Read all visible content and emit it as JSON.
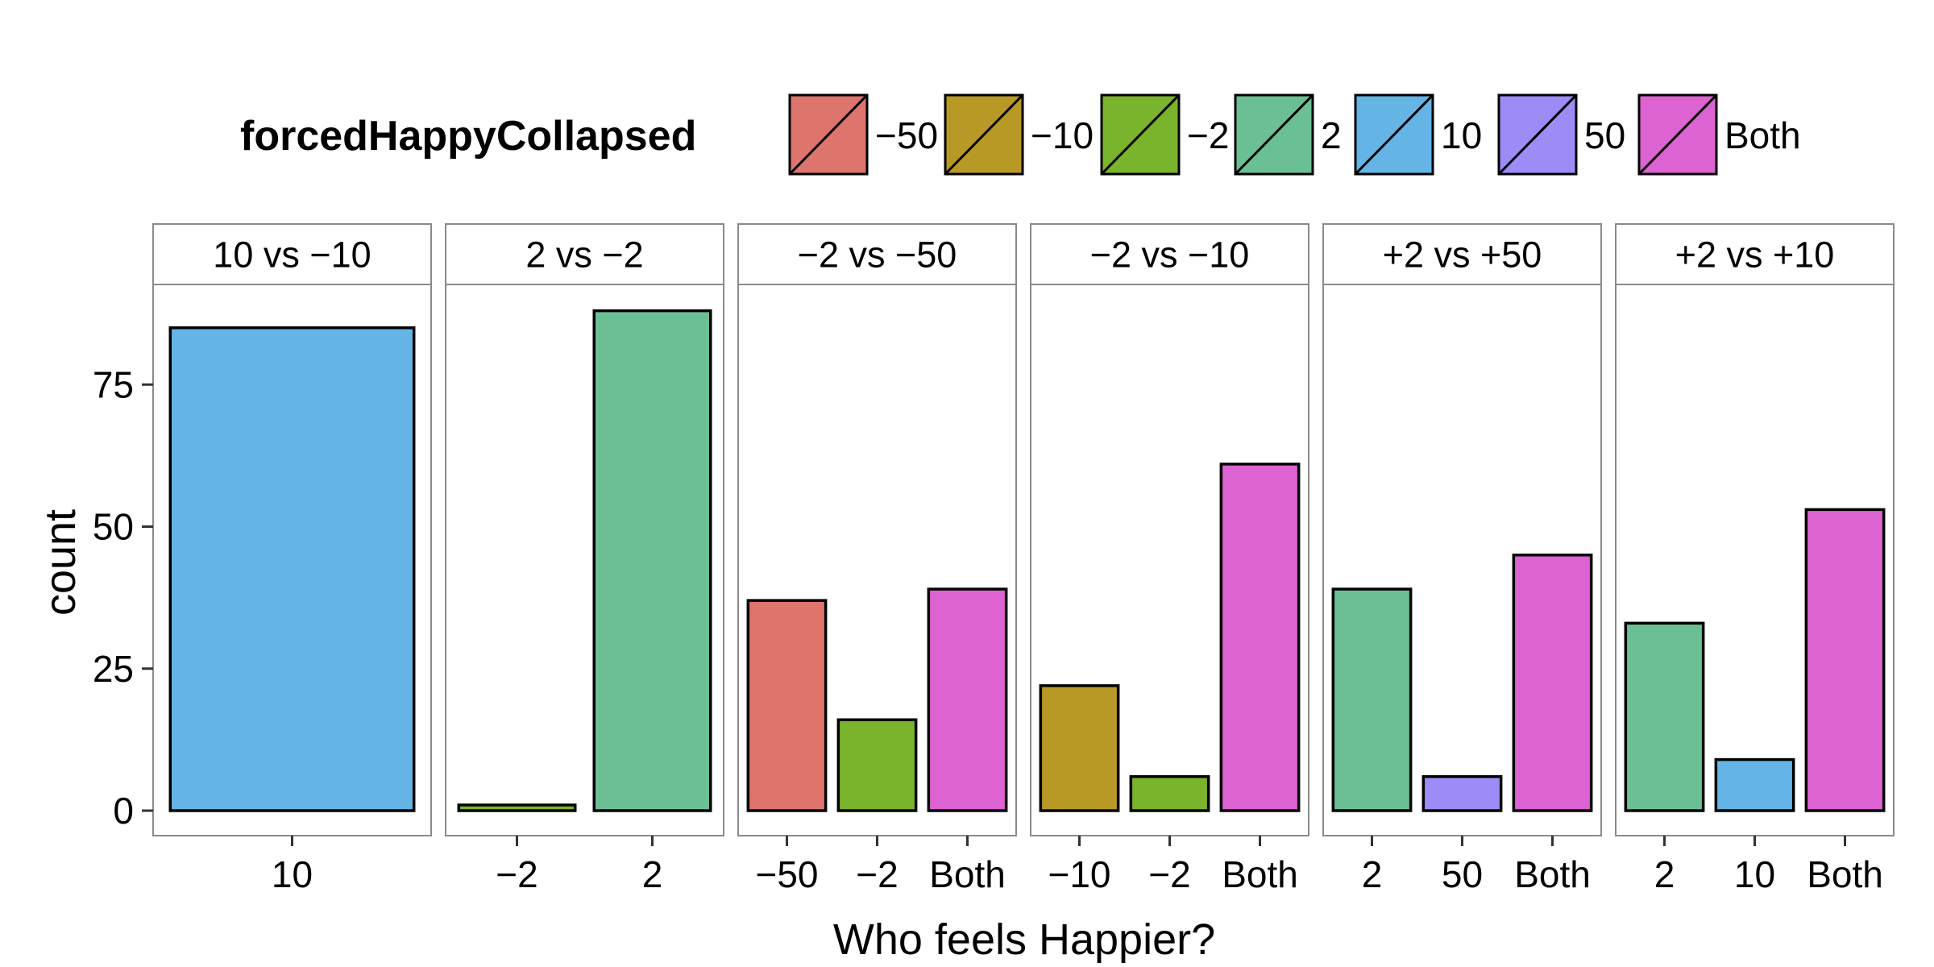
{
  "chart_data": {
    "type": "bar",
    "title": "",
    "xlabel": "Who feels Happier?",
    "ylabel": "count",
    "ylim": [
      0,
      90
    ],
    "y_ticks": [
      0,
      25,
      50,
      75
    ],
    "grid": false,
    "legend": {
      "title": "forcedHappyCollapsed",
      "placement": "top",
      "entries": [
        {
          "label": "−50",
          "color": "#DD756D"
        },
        {
          "label": "−10",
          "color": "#B89925"
        },
        {
          "label": "−2",
          "color": "#7AB32C"
        },
        {
          "label": "2",
          "color": "#6BBF95"
        },
        {
          "label": "10",
          "color": "#64B4E6"
        },
        {
          "label": "50",
          "color": "#9D8CF7"
        },
        {
          "label": "Both",
          "color": "#DC63D1"
        }
      ]
    },
    "facets": [
      {
        "strip": "10 vs −10",
        "categories": [
          "10"
        ],
        "values": [
          85
        ]
      },
      {
        "strip": "2 vs −2",
        "categories": [
          "−2",
          "2"
        ],
        "values": [
          1,
          88
        ]
      },
      {
        "strip": "−2 vs −50",
        "categories": [
          "−50",
          "−2",
          "Both"
        ],
        "values": [
          37,
          16,
          39
        ]
      },
      {
        "strip": "−2 vs −10",
        "categories": [
          "−10",
          "−2",
          "Both"
        ],
        "values": [
          22,
          6,
          61
        ]
      },
      {
        "strip": "+2 vs +50",
        "categories": [
          "2",
          "50",
          "Both"
        ],
        "values": [
          39,
          6,
          45
        ]
      },
      {
        "strip": "+2 vs +10",
        "categories": [
          "2",
          "10",
          "Both"
        ],
        "values": [
          33,
          9,
          53
        ]
      }
    ]
  }
}
